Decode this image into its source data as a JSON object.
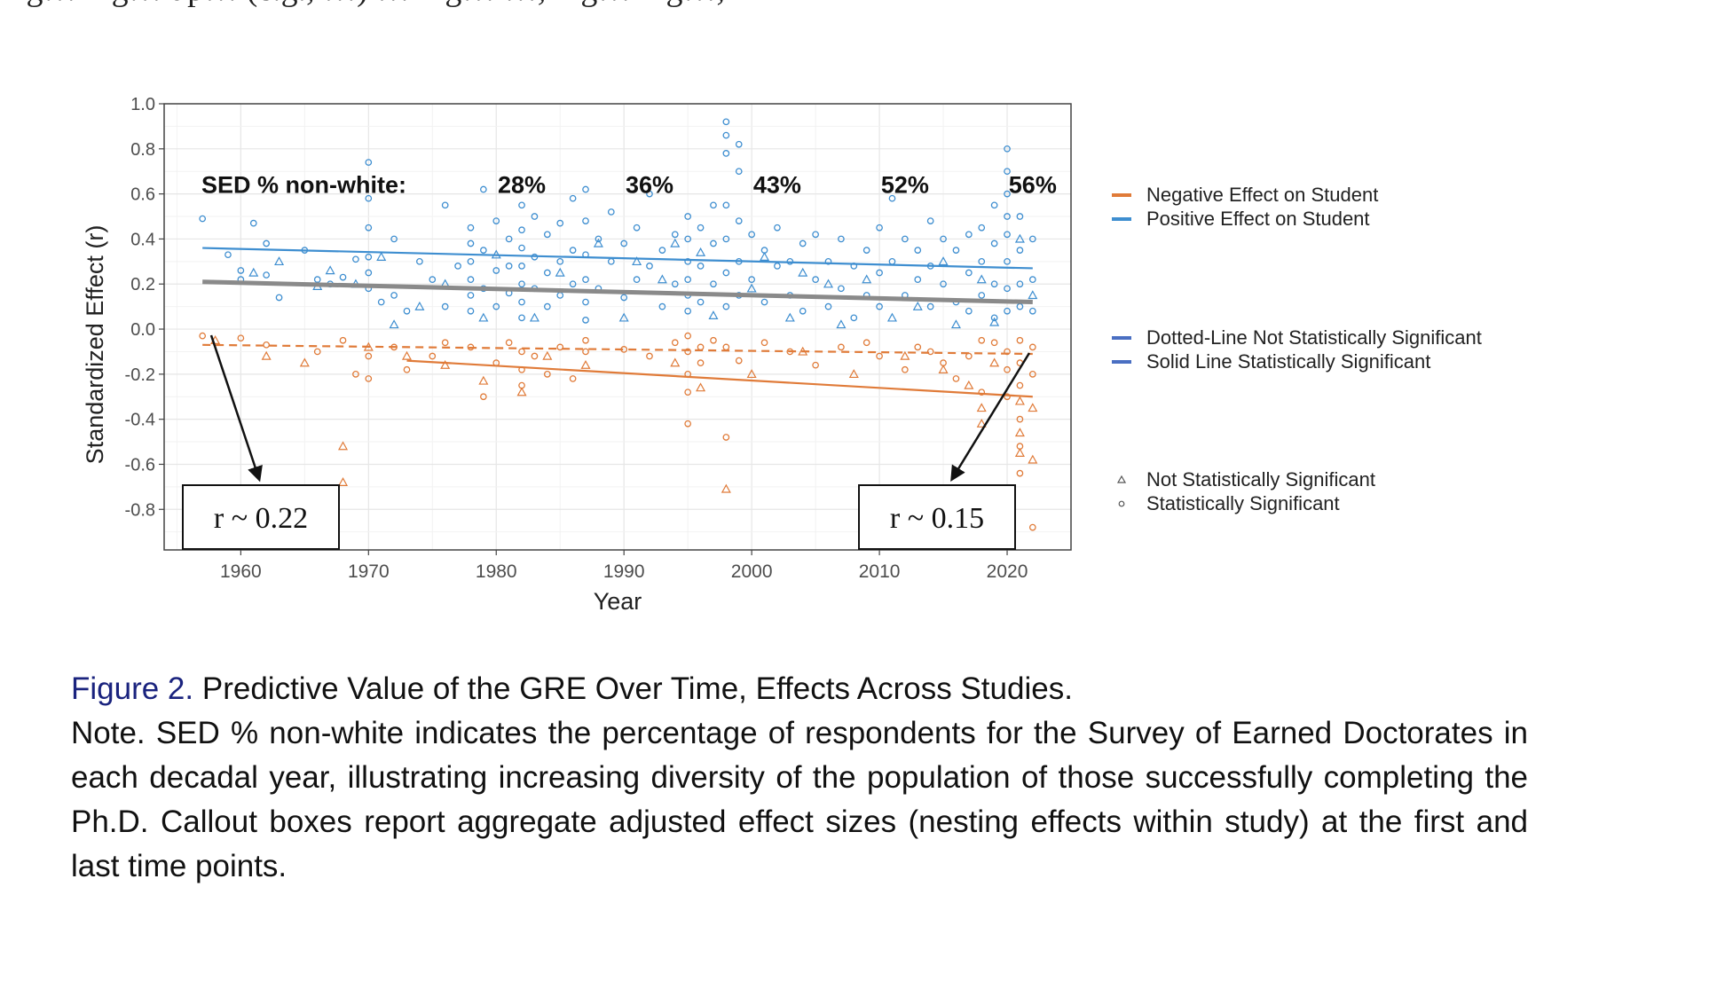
{
  "top_text": "ing… ing… up… (e.g., …) … ing… …, ing… ing…,",
  "chart_data": {
    "type": "scatter",
    "xlabel": "Year",
    "ylabel": "Standardized Effect (r)",
    "xlim": [
      1954,
      2025
    ],
    "ylim": [
      -0.98,
      1.0
    ],
    "x_ticks": [
      1960,
      1970,
      1980,
      1990,
      2000,
      2010,
      2020
    ],
    "y_ticks": [
      1.0,
      0.8,
      0.6,
      0.4,
      0.2,
      0.0,
      -0.2,
      -0.4,
      -0.6,
      -0.8
    ],
    "y_tick_labels": [
      "1.0",
      "0.8",
      "0.6",
      "0.4",
      "0.2",
      "0.0",
      "-0.2",
      "-0.4",
      "-0.6",
      "-0.8"
    ],
    "grid": true,
    "colors": {
      "negative": "#e07b39",
      "positive": "#3e8ed0",
      "gray_line": "#8a8a8a"
    },
    "sed_label": "SED % non-white:",
    "sed_annotations": [
      {
        "year": 1982,
        "label": "28%"
      },
      {
        "year": 1992,
        "label": "36%"
      },
      {
        "year": 2002,
        "label": "43%"
      },
      {
        "year": 2012,
        "label": "52%"
      },
      {
        "year": 2022,
        "label": "56%"
      }
    ],
    "sed_annotation_y": 0.64,
    "trend_lines": [
      {
        "name": "Positive Effect on Student",
        "style": "solid",
        "x": [
          1957,
          2022
        ],
        "y": [
          0.36,
          0.27
        ]
      },
      {
        "name": "Negative Effect on Student",
        "style": "solid",
        "x": [
          1973,
          2022
        ],
        "y": [
          -0.14,
          -0.3
        ]
      },
      {
        "name": "Negative Effect on Student",
        "style": "dotted",
        "x": [
          1957,
          2022
        ],
        "y": [
          -0.07,
          -0.11
        ]
      },
      {
        "name": "Overall",
        "style": "solid-gray",
        "x": [
          1957,
          2022
        ],
        "y": [
          0.21,
          0.12
        ]
      }
    ],
    "callouts": [
      {
        "label": "r ~ 0.22",
        "year": 1957,
        "r": -0.02
      },
      {
        "label": "r ~ 0.15",
        "year": 2022,
        "r": -0.11
      }
    ],
    "legend": {
      "placement": "right",
      "effect_direction": [
        {
          "label": "Negative Effect on Student",
          "color": "#e07b39"
        },
        {
          "label": "Positive Effect on Student",
          "color": "#3e8ed0"
        }
      ],
      "line_type": [
        {
          "label": "Dotted-Line Not Statistically Significant",
          "color": "#4a6fc2"
        },
        {
          "label": "Solid Line Statistically Significant",
          "color": "#4a6fc2"
        }
      ],
      "marker_type": [
        {
          "label": "Not Statistically Significant",
          "marker": "triangle"
        },
        {
          "label": "Statistically Significant",
          "marker": "circle"
        }
      ]
    },
    "points_positive": [
      [
        1957,
        0.49
      ],
      [
        1959,
        0.33
      ],
      [
        1960,
        0.22
      ],
      [
        1960,
        0.26
      ],
      [
        1961,
        0.47
      ],
      [
        1962,
        0.38
      ],
      [
        1962,
        0.24
      ],
      [
        1963,
        0.14
      ],
      [
        1965,
        0.35
      ],
      [
        1966,
        0.22
      ],
      [
        1967,
        0.2
      ],
      [
        1968,
        0.23
      ],
      [
        1969,
        0.31
      ],
      [
        1970,
        0.74
      ],
      [
        1970,
        0.58
      ],
      [
        1970,
        0.45
      ],
      [
        1970,
        0.32
      ],
      [
        1970,
        0.25
      ],
      [
        1970,
        0.18
      ],
      [
        1971,
        0.12
      ],
      [
        1972,
        0.4
      ],
      [
        1972,
        0.15
      ],
      [
        1973,
        0.08
      ],
      [
        1974,
        0.3
      ],
      [
        1975,
        0.22
      ],
      [
        1976,
        0.55
      ],
      [
        1976,
        0.1
      ],
      [
        1977,
        0.28
      ],
      [
        1978,
        0.45
      ],
      [
        1978,
        0.38
      ],
      [
        1978,
        0.3
      ],
      [
        1978,
        0.22
      ],
      [
        1978,
        0.15
      ],
      [
        1978,
        0.08
      ],
      [
        1979,
        0.62
      ],
      [
        1979,
        0.35
      ],
      [
        1979,
        0.18
      ],
      [
        1980,
        0.48
      ],
      [
        1980,
        0.26
      ],
      [
        1980,
        0.1
      ],
      [
        1981,
        0.4
      ],
      [
        1981,
        0.28
      ],
      [
        1981,
        0.16
      ],
      [
        1982,
        0.55
      ],
      [
        1982,
        0.44
      ],
      [
        1982,
        0.36
      ],
      [
        1982,
        0.28
      ],
      [
        1982,
        0.2
      ],
      [
        1982,
        0.12
      ],
      [
        1982,
        0.05
      ],
      [
        1983,
        0.5
      ],
      [
        1983,
        0.32
      ],
      [
        1983,
        0.18
      ],
      [
        1984,
        0.42
      ],
      [
        1984,
        0.25
      ],
      [
        1984,
        0.1
      ],
      [
        1985,
        0.47
      ],
      [
        1985,
        0.3
      ],
      [
        1985,
        0.15
      ],
      [
        1986,
        0.58
      ],
      [
        1986,
        0.35
      ],
      [
        1986,
        0.2
      ],
      [
        1987,
        0.62
      ],
      [
        1987,
        0.48
      ],
      [
        1987,
        0.33
      ],
      [
        1987,
        0.22
      ],
      [
        1987,
        0.12
      ],
      [
        1987,
        0.04
      ],
      [
        1988,
        0.4
      ],
      [
        1988,
        0.18
      ],
      [
        1989,
        0.52
      ],
      [
        1989,
        0.3
      ],
      [
        1990,
        0.38
      ],
      [
        1990,
        0.14
      ],
      [
        1991,
        0.45
      ],
      [
        1991,
        0.22
      ],
      [
        1992,
        0.6
      ],
      [
        1992,
        0.28
      ],
      [
        1993,
        0.35
      ],
      [
        1993,
        0.1
      ],
      [
        1994,
        0.42
      ],
      [
        1994,
        0.2
      ],
      [
        1995,
        0.5
      ],
      [
        1995,
        0.4
      ],
      [
        1995,
        0.3
      ],
      [
        1995,
        0.22
      ],
      [
        1995,
        0.15
      ],
      [
        1995,
        0.08
      ],
      [
        1996,
        0.45
      ],
      [
        1996,
        0.28
      ],
      [
        1996,
        0.12
      ],
      [
        1997,
        0.55
      ],
      [
        1997,
        0.38
      ],
      [
        1997,
        0.2
      ],
      [
        1998,
        0.92
      ],
      [
        1998,
        0.86
      ],
      [
        1998,
        0.78
      ],
      [
        1998,
        0.55
      ],
      [
        1998,
        0.4
      ],
      [
        1998,
        0.25
      ],
      [
        1998,
        0.1
      ],
      [
        1999,
        0.82
      ],
      [
        1999,
        0.7
      ],
      [
        1999,
        0.48
      ],
      [
        1999,
        0.3
      ],
      [
        1999,
        0.15
      ],
      [
        2000,
        0.42
      ],
      [
        2000,
        0.22
      ],
      [
        2001,
        0.35
      ],
      [
        2001,
        0.12
      ],
      [
        2002,
        0.45
      ],
      [
        2002,
        0.28
      ],
      [
        2003,
        0.3
      ],
      [
        2003,
        0.15
      ],
      [
        2004,
        0.38
      ],
      [
        2004,
        0.08
      ],
      [
        2005,
        0.42
      ],
      [
        2005,
        0.22
      ],
      [
        2006,
        0.3
      ],
      [
        2006,
        0.1
      ],
      [
        2007,
        0.4
      ],
      [
        2007,
        0.18
      ],
      [
        2008,
        0.28
      ],
      [
        2008,
        0.05
      ],
      [
        2009,
        0.35
      ],
      [
        2009,
        0.15
      ],
      [
        2010,
        0.45
      ],
      [
        2010,
        0.25
      ],
      [
        2010,
        0.1
      ],
      [
        2011,
        0.58
      ],
      [
        2011,
        0.3
      ],
      [
        2012,
        0.4
      ],
      [
        2012,
        0.15
      ],
      [
        2013,
        0.35
      ],
      [
        2013,
        0.22
      ],
      [
        2014,
        0.48
      ],
      [
        2014,
        0.28
      ],
      [
        2014,
        0.1
      ],
      [
        2015,
        0.4
      ],
      [
        2015,
        0.2
      ],
      [
        2016,
        0.35
      ],
      [
        2016,
        0.12
      ],
      [
        2017,
        0.42
      ],
      [
        2017,
        0.25
      ],
      [
        2017,
        0.08
      ],
      [
        2018,
        0.45
      ],
      [
        2018,
        0.3
      ],
      [
        2018,
        0.15
      ],
      [
        2019,
        0.55
      ],
      [
        2019,
        0.38
      ],
      [
        2019,
        0.2
      ],
      [
        2019,
        0.05
      ],
      [
        2020,
        0.8
      ],
      [
        2020,
        0.7
      ],
      [
        2020,
        0.6
      ],
      [
        2020,
        0.5
      ],
      [
        2020,
        0.42
      ],
      [
        2020,
        0.3
      ],
      [
        2020,
        0.18
      ],
      [
        2020,
        0.08
      ],
      [
        2021,
        0.5
      ],
      [
        2021,
        0.35
      ],
      [
        2021,
        0.2
      ],
      [
        2021,
        0.1
      ],
      [
        2022,
        0.4
      ],
      [
        2022,
        0.22
      ],
      [
        2022,
        0.08
      ]
    ],
    "points_negative": [
      [
        1957,
        -0.03
      ],
      [
        1960,
        -0.04
      ],
      [
        1962,
        -0.07
      ],
      [
        1966,
        -0.1
      ],
      [
        1968,
        -0.05
      ],
      [
        1969,
        -0.2
      ],
      [
        1970,
        -0.22
      ],
      [
        1970,
        -0.12
      ],
      [
        1972,
        -0.08
      ],
      [
        1973,
        -0.18
      ],
      [
        1975,
        -0.12
      ],
      [
        1976,
        -0.06
      ],
      [
        1978,
        -0.08
      ],
      [
        1979,
        -0.3
      ],
      [
        1980,
        -0.15
      ],
      [
        1981,
        -0.06
      ],
      [
        1982,
        -0.1
      ],
      [
        1982,
        -0.18
      ],
      [
        1982,
        -0.25
      ],
      [
        1983,
        -0.12
      ],
      [
        1984,
        -0.2
      ],
      [
        1985,
        -0.08
      ],
      [
        1986,
        -0.22
      ],
      [
        1987,
        -0.1
      ],
      [
        1987,
        -0.05
      ],
      [
        1990,
        -0.09
      ],
      [
        1992,
        -0.12
      ],
      [
        1994,
        -0.06
      ],
      [
        1995,
        -0.03
      ],
      [
        1995,
        -0.1
      ],
      [
        1995,
        -0.2
      ],
      [
        1995,
        -0.28
      ],
      [
        1995,
        -0.42
      ],
      [
        1996,
        -0.08
      ],
      [
        1996,
        -0.15
      ],
      [
        1997,
        -0.05
      ],
      [
        1998,
        -0.08
      ],
      [
        1998,
        -0.48
      ],
      [
        1999,
        -0.14
      ],
      [
        2001,
        -0.06
      ],
      [
        2003,
        -0.1
      ],
      [
        2005,
        -0.16
      ],
      [
        2007,
        -0.08
      ],
      [
        2009,
        -0.06
      ],
      [
        2010,
        -0.12
      ],
      [
        2012,
        -0.18
      ],
      [
        2013,
        -0.08
      ],
      [
        2014,
        -0.1
      ],
      [
        2015,
        -0.15
      ],
      [
        2016,
        -0.22
      ],
      [
        2017,
        -0.12
      ],
      [
        2018,
        -0.28
      ],
      [
        2018,
        -0.05
      ],
      [
        2019,
        -0.06
      ],
      [
        2020,
        -0.1
      ],
      [
        2020,
        -0.18
      ],
      [
        2020,
        -0.3
      ],
      [
        2021,
        -0.05
      ],
      [
        2021,
        -0.15
      ],
      [
        2021,
        -0.25
      ],
      [
        2021,
        -0.4
      ],
      [
        2021,
        -0.52
      ],
      [
        2021,
        -0.64
      ],
      [
        2022,
        -0.08
      ],
      [
        2022,
        -0.2
      ],
      [
        2022,
        -0.88
      ]
    ],
    "triangles_positive": [
      [
        1961,
        0.25
      ],
      [
        1963,
        0.3
      ],
      [
        1966,
        0.19
      ],
      [
        1967,
        0.26
      ],
      [
        1969,
        0.2
      ],
      [
        1971,
        0.32
      ],
      [
        1972,
        0.02
      ],
      [
        1974,
        0.1
      ],
      [
        1976,
        0.2
      ],
      [
        1979,
        0.05
      ],
      [
        1980,
        0.33
      ],
      [
        1983,
        0.05
      ],
      [
        1985,
        0.25
      ],
      [
        1988,
        0.38
      ],
      [
        1990,
        0.05
      ],
      [
        1991,
        0.3
      ],
      [
        1993,
        0.22
      ],
      [
        1994,
        0.38
      ],
      [
        1996,
        0.34
      ],
      [
        1997,
        0.06
      ],
      [
        2000,
        0.18
      ],
      [
        2001,
        0.32
      ],
      [
        2003,
        0.05
      ],
      [
        2004,
        0.25
      ],
      [
        2006,
        0.2
      ],
      [
        2007,
        0.02
      ],
      [
        2009,
        0.22
      ],
      [
        2011,
        0.05
      ],
      [
        2013,
        0.1
      ],
      [
        2015,
        0.3
      ],
      [
        2016,
        0.02
      ],
      [
        2018,
        0.22
      ],
      [
        2019,
        0.03
      ],
      [
        2021,
        0.4
      ],
      [
        2022,
        0.15
      ]
    ],
    "triangles_negative": [
      [
        1958,
        -0.05
      ],
      [
        1962,
        -0.12
      ],
      [
        1965,
        -0.15
      ],
      [
        1968,
        -0.52
      ],
      [
        1968,
        -0.68
      ],
      [
        1970,
        -0.08
      ],
      [
        1973,
        -0.12
      ],
      [
        1976,
        -0.16
      ],
      [
        1979,
        -0.23
      ],
      [
        1982,
        -0.28
      ],
      [
        1984,
        -0.12
      ],
      [
        1987,
        -0.16
      ],
      [
        1994,
        -0.15
      ],
      [
        1996,
        -0.26
      ],
      [
        1998,
        -0.71
      ],
      [
        2000,
        -0.2
      ],
      [
        2004,
        -0.1
      ],
      [
        2008,
        -0.2
      ],
      [
        2012,
        -0.12
      ],
      [
        2015,
        -0.18
      ],
      [
        2017,
        -0.25
      ],
      [
        2018,
        -0.35
      ],
      [
        2018,
        -0.42
      ],
      [
        2019,
        -0.15
      ],
      [
        2021,
        -0.32
      ],
      [
        2021,
        -0.46
      ],
      [
        2021,
        -0.55
      ],
      [
        2022,
        -0.35
      ],
      [
        2022,
        -0.58
      ]
    ]
  },
  "caption": {
    "figure_label": "Figure 2.",
    "figure_title": "Predictive Value of the GRE Over Time, Effects Across Studies.",
    "note": "Note. SED % non-white indicates the percentage of respondents for the Survey of Earned Doctorates in each decadal year, illustrating increasing diversity of the population of those successfully completing the Ph.D. Callout boxes report aggregate adjusted effect sizes (nesting effects within study) at the first and last time points."
  }
}
